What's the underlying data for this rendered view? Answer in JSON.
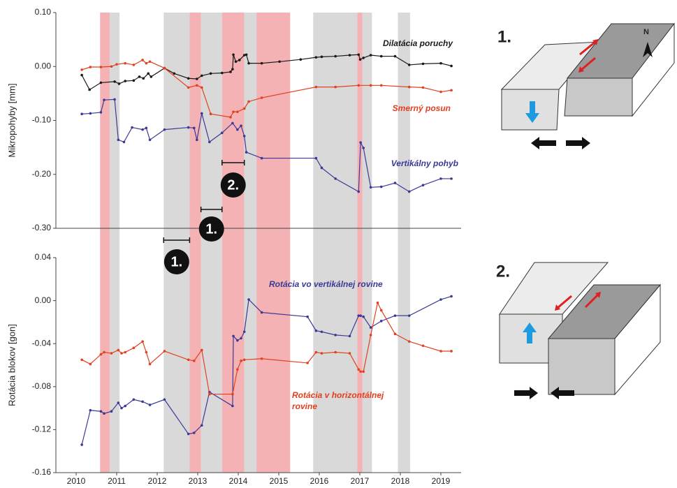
{
  "chart_data": [
    {
      "type": "line",
      "y_label": "Mikropohyby [mm]",
      "xlim": [
        2009.5,
        2019.5
      ],
      "ylim": [
        -0.3,
        0.1
      ],
      "yticks": [
        {
          "value": 0.1,
          "label": "0.10"
        },
        {
          "value": 0,
          "label": "0.00"
        },
        {
          "value": -0.1,
          "label": "-0.10"
        },
        {
          "value": -0.2,
          "label": "-0.20"
        },
        {
          "value": -0.3,
          "label": "-0.30"
        }
      ],
      "grid": false,
      "periods": [
        {
          "x": [
            2010.59,
            2010.83
          ],
          "color": "#f4b2b4"
        },
        {
          "x": [
            2010.83,
            2011.07
          ],
          "color": "#d9d9d9"
        },
        {
          "x": [
            2012.16,
            2012.8
          ],
          "color": "#d9d9d9"
        },
        {
          "x": [
            2012.8,
            2013.08
          ],
          "color": "#f4b2b4"
        },
        {
          "x": [
            2013.08,
            2013.6
          ],
          "color": "#d9d9d9"
        },
        {
          "x": [
            2013.6,
            2014.15
          ],
          "color": "#f4b2b4"
        },
        {
          "x": [
            2014.15,
            2014.45
          ],
          "color": "#d9d9d9"
        },
        {
          "x": [
            2014.45,
            2015.28
          ],
          "color": "#f4b2b4"
        },
        {
          "x": [
            2015.85,
            2016.94
          ],
          "color": "#d9d9d9"
        },
        {
          "x": [
            2016.94,
            2017.06
          ],
          "color": "#f4b2b4"
        },
        {
          "x": [
            2017.06,
            2017.3
          ],
          "color": "#d9d9d9"
        },
        {
          "x": [
            2017.94,
            2018.24
          ],
          "color": "#d9d9d9"
        }
      ],
      "intervals": [
        {
          "label": "1.",
          "x": [
            2012.16,
            2012.8
          ]
        },
        {
          "label": "1.",
          "x": [
            2013.08,
            2013.6
          ]
        },
        {
          "label": "2.",
          "x": [
            2013.6,
            2014.15
          ]
        }
      ],
      "series": [
        {
          "name": "Dilatácia poruchy",
          "color": "#1a1a1a",
          "x": [
            2010.14,
            2010.33,
            2010.61,
            2010.95,
            2011.06,
            2011.21,
            2011.42,
            2011.56,
            2011.66,
            2011.78,
            2011.85,
            2012.18,
            2012.42,
            2012.77,
            2012.98,
            2013.1,
            2013.32,
            2013.6,
            2013.81,
            2013.86,
            2013.88,
            2013.94,
            2014.03,
            2014.15,
            2014.2,
            2014.26,
            2014.58,
            2015.02,
            2015.54,
            2015.92,
            2016.06,
            2016.4,
            2016.75,
            2016.97,
            2017.01,
            2017.09,
            2017.27,
            2017.53,
            2017.87,
            2018.22,
            2018.56,
            2019.0,
            2019.26
          ],
          "values": [
            -0.016,
            -0.043,
            -0.03,
            -0.028,
            -0.032,
            -0.027,
            -0.026,
            -0.019,
            -0.022,
            -0.013,
            -0.019,
            -0.003,
            -0.013,
            -0.022,
            -0.023,
            -0.017,
            -0.013,
            -0.012,
            -0.01,
            -0.005,
            0.022,
            0.009,
            0.012,
            0.021,
            0.022,
            0.006,
            0.006,
            0.009,
            0.013,
            0.017,
            0.018,
            0.019,
            0.021,
            0.022,
            0.013,
            0.016,
            0.021,
            0.019,
            0.019,
            0.003,
            0.005,
            0.006,
            0.001
          ]
        },
        {
          "name": "Smerný posun",
          "color": "#e2401f",
          "x": [
            2010.14,
            2010.35,
            2010.61,
            2010.87,
            2011.0,
            2011.21,
            2011.42,
            2011.64,
            2011.73,
            2011.82,
            2012.18,
            2012.77,
            2012.98,
            2013.1,
            2013.32,
            2013.81,
            2013.88,
            2013.98,
            2014.15,
            2014.26,
            2014.58,
            2015.92,
            2016.4,
            2016.97,
            2017.27,
            2017.53,
            2018.22,
            2018.56,
            2019.0,
            2019.26
          ],
          "values": [
            -0.006,
            -0.001,
            -0.001,
            0,
            0.004,
            0.006,
            0.003,
            0.012,
            0.006,
            0.009,
            -0.003,
            -0.039,
            -0.035,
            -0.039,
            -0.088,
            -0.094,
            -0.084,
            -0.084,
            -0.078,
            -0.065,
            -0.058,
            -0.038,
            -0.038,
            -0.035,
            -0.035,
            -0.035,
            -0.038,
            -0.039,
            -0.047,
            -0.044
          ]
        },
        {
          "name": "Vertikálny pohyb",
          "color": "#3a3a96",
          "x": [
            2010.14,
            2010.35,
            2010.61,
            2010.69,
            2010.95,
            2011.04,
            2011.18,
            2011.38,
            2011.64,
            2011.73,
            2011.82,
            2012.18,
            2012.77,
            2012.91,
            2012.98,
            2013.1,
            2013.29,
            2013.6,
            2013.86,
            2013.98,
            2014.07,
            2014.15,
            2014.2,
            2014.58,
            2015.92,
            2016.06,
            2016.4,
            2016.97,
            2017.02,
            2017.09,
            2017.27,
            2017.53,
            2017.87,
            2018.22,
            2018.56,
            2019.0,
            2019.26
          ],
          "values": [
            -0.088,
            -0.087,
            -0.085,
            -0.062,
            -0.061,
            -0.136,
            -0.14,
            -0.113,
            -0.117,
            -0.114,
            -0.136,
            -0.117,
            -0.113,
            -0.114,
            -0.136,
            -0.087,
            -0.14,
            -0.123,
            -0.105,
            -0.117,
            -0.11,
            -0.129,
            -0.159,
            -0.17,
            -0.17,
            -0.188,
            -0.208,
            -0.232,
            -0.141,
            -0.151,
            -0.224,
            -0.223,
            -0.216,
            -0.232,
            -0.22,
            -0.208,
            -0.208
          ]
        }
      ]
    },
    {
      "type": "line",
      "y_label": "Rotácia blokov [gon]",
      "xlim": [
        2009.5,
        2019.5
      ],
      "ylim": [
        -0.16,
        0.04
      ],
      "xticks": [
        2010,
        2011,
        2012,
        2013,
        2014,
        2015,
        2016,
        2017,
        2018,
        2019
      ],
      "yticks": [
        0.04,
        {
          "value": 0,
          "label": "0.00"
        },
        -0.04,
        -0.08,
        -0.12,
        -0.16
      ],
      "grid": false,
      "series": [
        {
          "name": "Rotácia vo vertikálnej rovine",
          "color": "#3a3a96",
          "x": [
            2010.14,
            2010.35,
            2010.61,
            2010.69,
            2010.87,
            2011.04,
            2011.12,
            2011.21,
            2011.42,
            2011.64,
            2011.82,
            2012.18,
            2012.77,
            2012.91,
            2013.1,
            2013.29,
            2013.86,
            2013.88,
            2013.98,
            2014.07,
            2014.15,
            2014.26,
            2014.58,
            2015.71,
            2015.92,
            2016.06,
            2016.4,
            2016.75,
            2016.97,
            2017.02,
            2017.09,
            2017.27,
            2017.53,
            2017.87,
            2018.22,
            2019.0,
            2019.26
          ],
          "values": [
            -0.134,
            -0.102,
            -0.103,
            -0.105,
            -0.103,
            -0.095,
            -0.1,
            -0.098,
            -0.092,
            -0.094,
            -0.097,
            -0.092,
            -0.124,
            -0.123,
            -0.116,
            -0.085,
            -0.098,
            -0.033,
            -0.037,
            -0.035,
            -0.029,
            0.001,
            -0.011,
            -0.015,
            -0.028,
            -0.029,
            -0.032,
            -0.033,
            -0.014,
            -0.014,
            -0.015,
            -0.025,
            -0.019,
            -0.014,
            -0.014,
            0.001,
            0.004
          ]
        },
        {
          "name": "Rotácia v horizontálnej rovine",
          "color": "#e2401f",
          "x": [
            2010.14,
            2010.35,
            2010.61,
            2010.69,
            2010.87,
            2011.04,
            2011.12,
            2011.21,
            2011.42,
            2011.64,
            2011.73,
            2011.82,
            2012.18,
            2012.77,
            2012.91,
            2013.1,
            2013.29,
            2013.86,
            2013.98,
            2014.07,
            2014.15,
            2014.58,
            2015.71,
            2015.92,
            2016.06,
            2016.4,
            2016.75,
            2016.97,
            2017.02,
            2017.09,
            2017.27,
            2017.44,
            2017.53,
            2017.87,
            2018.22,
            2018.56,
            2019.0,
            2019.26
          ],
          "values": [
            -0.055,
            -0.059,
            -0.05,
            -0.048,
            -0.049,
            -0.046,
            -0.049,
            -0.048,
            -0.044,
            -0.038,
            -0.048,
            -0.059,
            -0.047,
            -0.055,
            -0.056,
            -0.046,
            -0.087,
            -0.087,
            -0.064,
            -0.056,
            -0.055,
            -0.054,
            -0.058,
            -0.048,
            -0.049,
            -0.048,
            -0.049,
            -0.064,
            -0.066,
            -0.066,
            -0.032,
            -0.002,
            -0.009,
            -0.031,
            -0.038,
            -0.042,
            -0.047,
            -0.047
          ]
        }
      ]
    }
  ],
  "diagrams": [
    {
      "label": "1."
    },
    {
      "label": "2."
    }
  ],
  "north_label": "N"
}
